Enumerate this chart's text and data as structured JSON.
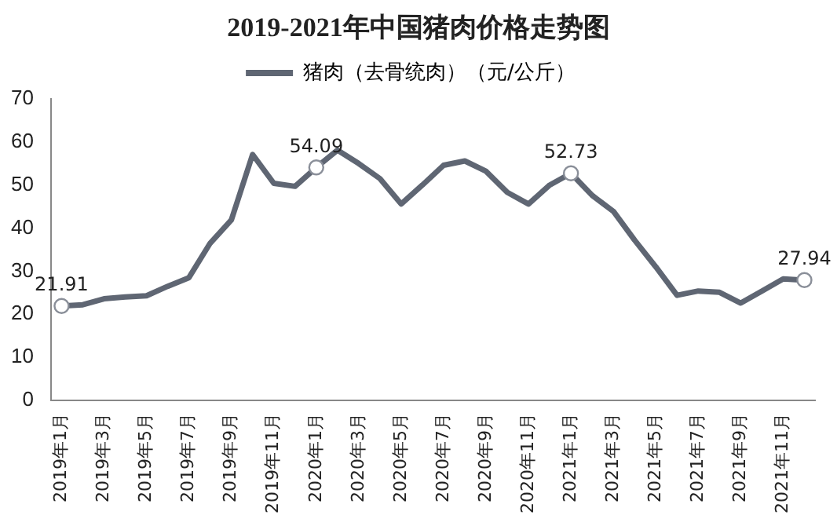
{
  "chart_data": {
    "type": "line",
    "title": "2019-2021年中国猪肉价格走势图",
    "categories": [
      "2019年1月",
      null,
      "2019年3月",
      null,
      "2019年5月",
      null,
      "2019年7月",
      null,
      "2019年9月",
      null,
      "2019年11月",
      null,
      "2020年1月",
      null,
      "2020年3月",
      null,
      "2020年5月",
      null,
      "2020年7月",
      null,
      "2020年9月",
      null,
      "2020年11月",
      null,
      "2021年1月",
      null,
      "2021年3月",
      null,
      "2021年5月",
      null,
      "2021年7月",
      null,
      "2021年9月",
      null,
      "2021年11月",
      null
    ],
    "series": [
      {
        "name": "猪肉（去骨统肉）（元/公斤）",
        "color": "#5f6673",
        "values": [
          21.91,
          22.2,
          23.6,
          24.0,
          24.3,
          26.5,
          28.5,
          36.5,
          41.9,
          57.1,
          50.4,
          49.7,
          54.09,
          58.1,
          55.0,
          51.5,
          45.6,
          50.0,
          54.6,
          55.6,
          53.2,
          48.3,
          45.6,
          50.0,
          52.73,
          47.6,
          43.9,
          37.2,
          31.0,
          24.4,
          25.4,
          25.1,
          22.6,
          25.4,
          28.2,
          27.94
        ],
        "value_labels": [
          "21.91",
          null,
          null,
          null,
          null,
          null,
          null,
          null,
          null,
          null,
          null,
          null,
          "54.09",
          null,
          null,
          null,
          null,
          null,
          null,
          null,
          null,
          null,
          null,
          null,
          "52.73",
          null,
          null,
          null,
          null,
          null,
          null,
          null,
          null,
          null,
          null,
          "27.94"
        ]
      }
    ],
    "ylim": [
      0,
      70
    ],
    "yticks": [
      0,
      10,
      20,
      30,
      40,
      50,
      60,
      70
    ],
    "grid": false,
    "legend": "top",
    "line_style": "solid"
  }
}
